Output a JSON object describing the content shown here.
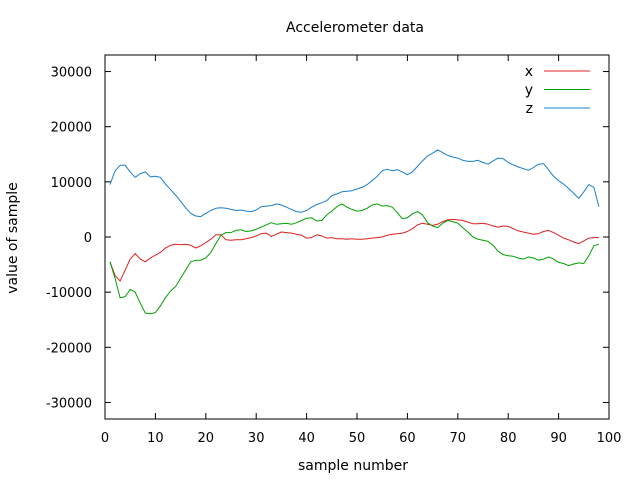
{
  "chart_data": {
    "type": "line",
    "title": "Accelerometer data",
    "xlabel": "sample number",
    "ylabel": "value of sample",
    "xlim": [
      0,
      100
    ],
    "ylim": [
      -33000,
      33000
    ],
    "xticks": [
      0,
      10,
      20,
      30,
      40,
      50,
      60,
      70,
      80,
      90,
      100
    ],
    "yticks": [
      -30000,
      -20000,
      -10000,
      0,
      10000,
      20000,
      30000
    ],
    "grid": false,
    "legend_position": "top-right",
    "x": [
      1,
      2,
      3,
      4,
      5,
      6,
      7,
      8,
      9,
      10,
      11,
      12,
      13,
      14,
      15,
      16,
      17,
      18,
      19,
      20,
      21,
      22,
      23,
      24,
      25,
      26,
      27,
      28,
      29,
      30,
      31,
      32,
      33,
      34,
      35,
      36,
      37,
      38,
      39,
      40,
      41,
      42,
      43,
      44,
      45,
      46,
      47,
      48,
      49,
      50,
      51,
      52,
      53,
      54,
      55,
      56,
      57,
      58,
      59,
      60,
      61,
      62,
      63,
      64,
      65,
      66,
      67,
      68,
      69,
      70,
      71,
      72,
      73,
      74,
      75,
      76,
      77,
      78,
      79,
      80,
      81,
      82,
      83,
      84,
      85,
      86,
      87,
      88,
      89,
      90,
      91,
      92,
      93,
      94,
      95,
      96,
      97,
      98
    ],
    "series": [
      {
        "name": "x",
        "color": "#e02020",
        "values": [
          -4500,
          -7000,
          -8000,
          -6000,
          -4000,
          -3000,
          -4000,
          -4500,
          -3800,
          -3300,
          -2800,
          -2000,
          -1500,
          -1300,
          -1400,
          -1300,
          -1500,
          -2000,
          -1600,
          -1000,
          -400,
          400,
          400,
          -500,
          -600,
          -500,
          -500,
          -300,
          -100,
          200,
          600,
          700,
          100,
          500,
          900,
          800,
          700,
          500,
          300,
          -200,
          -100,
          400,
          200,
          -200,
          -100,
          -300,
          -300,
          -400,
          -300,
          -400,
          -400,
          -300,
          -200,
          -100,
          0,
          300,
          500,
          600,
          700,
          1000,
          1500,
          2200,
          2500,
          2300,
          2100,
          2300,
          2800,
          3100,
          3200,
          3100,
          3000,
          2700,
          2400,
          2400,
          2500,
          2300,
          2000,
          1800,
          2000,
          1900,
          1500,
          1100,
          900,
          700,
          500,
          600,
          1000,
          1200,
          800,
          300,
          -200,
          -500,
          -900,
          -1200,
          -700,
          -200,
          -100,
          -100
        ]
      },
      {
        "name": "y",
        "color": "#00a000",
        "values": [
          -4500,
          -7500,
          -11000,
          -10800,
          -9500,
          -10000,
          -12000,
          -13800,
          -13900,
          -13700,
          -12500,
          -11000,
          -9800,
          -9000,
          -7500,
          -6000,
          -4500,
          -4200,
          -4200,
          -3800,
          -2800,
          -1200,
          300,
          800,
          800,
          1200,
          1300,
          1000,
          1100,
          1400,
          1800,
          2200,
          2600,
          2300,
          2400,
          2500,
          2300,
          2600,
          3000,
          3400,
          3500,
          2900,
          3000,
          4000,
          4700,
          5500,
          6000,
          5400,
          5000,
          4700,
          4800,
          5200,
          5800,
          6000,
          5600,
          5700,
          5400,
          4400,
          3300,
          3500,
          4200,
          4600,
          4000,
          2600,
          2000,
          1700,
          2500,
          3000,
          2800,
          2500,
          1700,
          900,
          0,
          -400,
          -600,
          -800,
          -1500,
          -2600,
          -3200,
          -3400,
          -3500,
          -3800,
          -4000,
          -3600,
          -3800,
          -4200,
          -4000,
          -3600,
          -4000,
          -4600,
          -4800,
          -5200,
          -4900,
          -4700,
          -4800,
          -3400,
          -1600,
          -1300
        ]
      },
      {
        "name": "z",
        "color": "#1a7fd0",
        "values": [
          9500,
          12000,
          13000,
          13000,
          11800,
          10800,
          11500,
          11800,
          10900,
          11000,
          10800,
          9600,
          8600,
          7600,
          6500,
          5300,
          4300,
          3800,
          3700,
          4300,
          4800,
          5200,
          5300,
          5200,
          5000,
          4800,
          4900,
          4700,
          4600,
          4900,
          5500,
          5600,
          5700,
          6000,
          5800,
          5400,
          5000,
          4600,
          4500,
          4800,
          5400,
          5900,
          6200,
          6600,
          7500,
          7800,
          8200,
          8300,
          8400,
          8700,
          9000,
          9500,
          10200,
          11000,
          12000,
          12300,
          12000,
          12200,
          11800,
          11300,
          11800,
          12800,
          13800,
          14700,
          15200,
          15800,
          15300,
          14800,
          14500,
          14300,
          13900,
          13700,
          13700,
          13900,
          13500,
          13200,
          13800,
          14300,
          14200,
          13500,
          13100,
          12700,
          12400,
          12100,
          12600,
          13200,
          13300,
          12200,
          11000,
          10200,
          9600,
          8800,
          7900,
          7000,
          8200,
          9500,
          9000,
          5500
        ]
      }
    ]
  }
}
